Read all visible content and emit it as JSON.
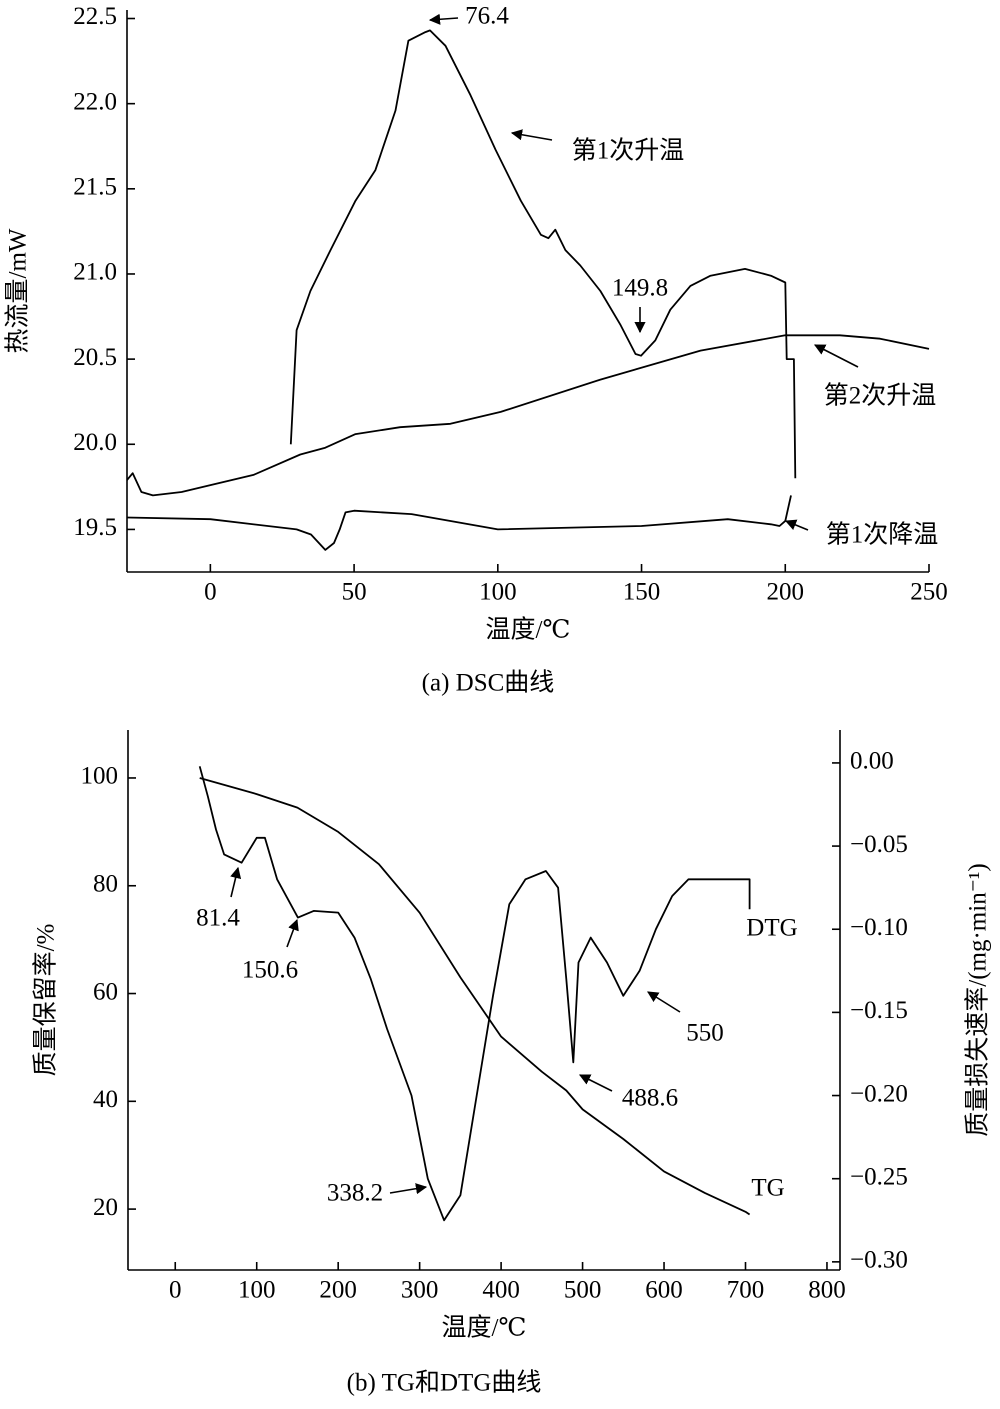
{
  "chart_data": [
    {
      "type": "line",
      "caption": "(a) DSC曲线",
      "xlabel": "温度/℃",
      "ylabel": "热流量/mW",
      "xlim": [
        -29,
        250
      ],
      "xticks": [
        0,
        50,
        100,
        150,
        200,
        250
      ],
      "ylim": [
        19.25,
        22.55
      ],
      "yticks": [
        19.5,
        {
          "value": 20,
          "label": "20.0"
        },
        20.5,
        {
          "value": 21,
          "label": "21.0"
        },
        21.5,
        {
          "value": 22,
          "label": "22.0"
        },
        22.5
      ],
      "series": [
        {
          "name": "第1次升温",
          "color": "#000000",
          "x": [
            28,
            30,
            34.8,
            41.8,
            50.5,
            57.4,
            64.4,
            68.9,
            74.8,
            76.4,
            81.8,
            90.5,
            99.2,
            108,
            115,
            117.6,
            120,
            123.5,
            128.7,
            135.7,
            142.7,
            147.9,
            149.8,
            154.8,
            160,
            167,
            174,
            186,
            195,
            200,
            200.5,
            203,
            203.5
          ],
          "values": [
            20.0,
            20.67,
            20.9,
            21.14,
            21.43,
            21.61,
            21.96,
            22.37,
            22.42,
            22.43,
            22.34,
            22.05,
            21.73,
            21.43,
            21.23,
            21.21,
            21.26,
            21.14,
            21.05,
            20.9,
            20.7,
            20.53,
            20.52,
            20.61,
            20.79,
            20.93,
            20.99,
            21.03,
            20.99,
            20.95,
            20.5,
            20.5,
            19.8
          ]
        },
        {
          "name": "第2次升温",
          "color": "#000000",
          "x": [
            -29,
            -27,
            -24,
            -20,
            -10,
            0,
            15,
            31.3,
            40,
            50.5,
            66,
            83.5,
            101,
            135.7,
            170.5,
            200,
            219,
            233,
            250
          ],
          "values": [
            19.79,
            19.83,
            19.72,
            19.7,
            19.72,
            19.76,
            19.82,
            19.94,
            19.98,
            20.06,
            20.1,
            20.12,
            20.19,
            20.38,
            20.55,
            20.64,
            20.64,
            20.62,
            20.56
          ]
        },
        {
          "name": "第1次降温",
          "color": "#000000",
          "x": [
            -29,
            0,
            30,
            35,
            40,
            43,
            45,
            47,
            50,
            70,
            100,
            150,
            180,
            195,
            198,
            200,
            202
          ],
          "values": [
            19.57,
            19.56,
            19.5,
            19.47,
            19.38,
            19.42,
            19.5,
            19.6,
            19.61,
            19.59,
            19.5,
            19.52,
            19.56,
            19.53,
            19.52,
            19.55,
            19.7
          ]
        }
      ],
      "annotations": [
        "76.4",
        "149.8"
      ]
    },
    {
      "type": "line",
      "caption": "(b) TG和DTG曲线",
      "xlabel": "温度/℃",
      "ylabel": "质量保留率/%",
      "y2label": "质量损失速率/(mg·min⁻¹)",
      "xlim": [
        -58,
        816
      ],
      "xticks": [
        0,
        100,
        200,
        300,
        400,
        500,
        600,
        700,
        800
      ],
      "ylim": [
        8.7,
        108.9
      ],
      "yticks": [
        20,
        40,
        60,
        80,
        100
      ],
      "y2lim": [
        -0.3049,
        0.0198
      ],
      "y2ticks": [
        {
          "value": 0,
          "label": "0.00"
        },
        {
          "value": -0.05,
          "label": "−0.05"
        },
        {
          "value": -0.1,
          "label": "−0.10"
        },
        {
          "value": -0.15,
          "label": "−0.15"
        },
        {
          "value": -0.2,
          "label": "−0.20"
        },
        {
          "value": -0.25,
          "label": "−0.25"
        },
        {
          "value": -0.3,
          "label": "−0.30"
        }
      ],
      "series": [
        {
          "name": "TG",
          "color": "#000000",
          "x": [
            30,
            100,
            150,
            200,
            250,
            300,
            350,
            400,
            450,
            480,
            500,
            550,
            600,
            650,
            700,
            705
          ],
          "values": [
            100,
            97,
            94.5,
            90,
            84,
            75,
            63,
            52,
            45.5,
            42,
            38.5,
            33,
            27,
            23,
            19.5,
            19
          ]
        },
        {
          "name": "DTG",
          "color": "#000000",
          "axis": "y2",
          "x": [
            30,
            40,
            50,
            60,
            81.4,
            100,
            110,
            125,
            150.6,
            170,
            200,
            220,
            240,
            260,
            290,
            310,
            330,
            350,
            370,
            390,
            410,
            430,
            455,
            470,
            480,
            488.6,
            495,
            510,
            530,
            550,
            570,
            590,
            610,
            630,
            660,
            690,
            705,
            705
          ],
          "values": [
            -0.002,
            -0.02,
            -0.04,
            -0.055,
            -0.06,
            -0.045,
            -0.045,
            -0.07,
            -0.093,
            -0.089,
            -0.09,
            -0.105,
            -0.13,
            -0.16,
            -0.2,
            -0.25,
            -0.275,
            -0.26,
            -0.2,
            -0.14,
            -0.085,
            -0.07,
            -0.065,
            -0.075,
            -0.13,
            -0.18,
            -0.12,
            -0.105,
            -0.12,
            -0.14,
            -0.125,
            -0.1,
            -0.08,
            -0.07,
            -0.07,
            -0.07,
            -0.07,
            -0.088
          ]
        }
      ],
      "annotations": [
        "81.4",
        "150.6",
        "338.2",
        "488.6",
        "550"
      ]
    }
  ]
}
